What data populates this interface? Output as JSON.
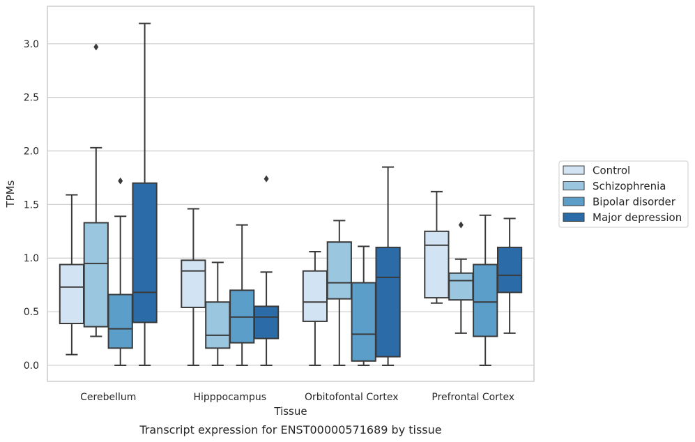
{
  "caption": "Transcript expression for ENST00000571689 by tissue",
  "chart_data": {
    "type": "box",
    "title": "",
    "xlabel": "Tissue",
    "ylabel": "TPMs",
    "ylim": [
      -0.15,
      3.35
    ],
    "yticks": [
      "0.0",
      "0.5",
      "1.0",
      "1.5",
      "2.0",
      "2.5",
      "3.0"
    ],
    "grid": "horizontal",
    "legend_position": "right",
    "categories": [
      "Cerebellum",
      "Hipppocampus",
      "Orbitofontal Cortex",
      "Prefrontal Cortex"
    ],
    "series": [
      {
        "name": "Control",
        "color": "#d2e3f3",
        "boxes": [
          {
            "whisker_low": 0.1,
            "q1": 0.39,
            "median": 0.73,
            "q3": 0.94,
            "whisker_high": 1.59,
            "outliers": []
          },
          {
            "whisker_low": 0.0,
            "q1": 0.54,
            "median": 0.88,
            "q3": 0.98,
            "whisker_high": 1.46,
            "outliers": []
          },
          {
            "whisker_low": 0.0,
            "q1": 0.41,
            "median": 0.59,
            "q3": 0.88,
            "whisker_high": 1.06,
            "outliers": []
          },
          {
            "whisker_low": 0.58,
            "q1": 0.63,
            "median": 1.12,
            "q3": 1.25,
            "whisker_high": 1.62,
            "outliers": []
          }
        ]
      },
      {
        "name": "Schizophrenia",
        "color": "#9ac6e0",
        "boxes": [
          {
            "whisker_low": 0.27,
            "q1": 0.36,
            "median": 0.95,
            "q3": 1.33,
            "whisker_high": 2.03,
            "outliers": [
              2.97
            ]
          },
          {
            "whisker_low": 0.0,
            "q1": 0.16,
            "median": 0.28,
            "q3": 0.59,
            "whisker_high": 0.96,
            "outliers": []
          },
          {
            "whisker_low": 0.0,
            "q1": 0.62,
            "median": 0.77,
            "q3": 1.15,
            "whisker_high": 1.35,
            "outliers": []
          },
          {
            "whisker_low": 0.3,
            "q1": 0.61,
            "median": 0.79,
            "q3": 0.86,
            "whisker_high": 0.99,
            "outliers": [
              1.31
            ]
          }
        ]
      },
      {
        "name": "Bipolar disorder",
        "color": "#5a9ec9",
        "boxes": [
          {
            "whisker_low": 0.0,
            "q1": 0.16,
            "median": 0.34,
            "q3": 0.66,
            "whisker_high": 1.39,
            "outliers": [
              1.72
            ]
          },
          {
            "whisker_low": 0.0,
            "q1": 0.21,
            "median": 0.45,
            "q3": 0.7,
            "whisker_high": 1.31,
            "outliers": []
          },
          {
            "whisker_low": 0.0,
            "q1": 0.04,
            "median": 0.29,
            "q3": 0.77,
            "whisker_high": 1.11,
            "outliers": []
          },
          {
            "whisker_low": 0.0,
            "q1": 0.27,
            "median": 0.59,
            "q3": 0.94,
            "whisker_high": 1.4,
            "outliers": []
          }
        ]
      },
      {
        "name": "Major depression",
        "color": "#2b6ca8",
        "boxes": [
          {
            "whisker_low": 0.0,
            "q1": 0.4,
            "median": 0.68,
            "q3": 1.7,
            "whisker_high": 3.19,
            "outliers": []
          },
          {
            "whisker_low": 0.0,
            "q1": 0.25,
            "median": 0.45,
            "q3": 0.55,
            "whisker_high": 0.87,
            "outliers": [
              1.74
            ]
          },
          {
            "whisker_low": 0.0,
            "q1": 0.08,
            "median": 0.82,
            "q3": 1.1,
            "whisker_high": 1.85,
            "outliers": []
          },
          {
            "whisker_low": 0.3,
            "q1": 0.68,
            "median": 0.84,
            "q3": 1.1,
            "whisker_high": 1.37,
            "outliers": []
          }
        ]
      }
    ]
  }
}
